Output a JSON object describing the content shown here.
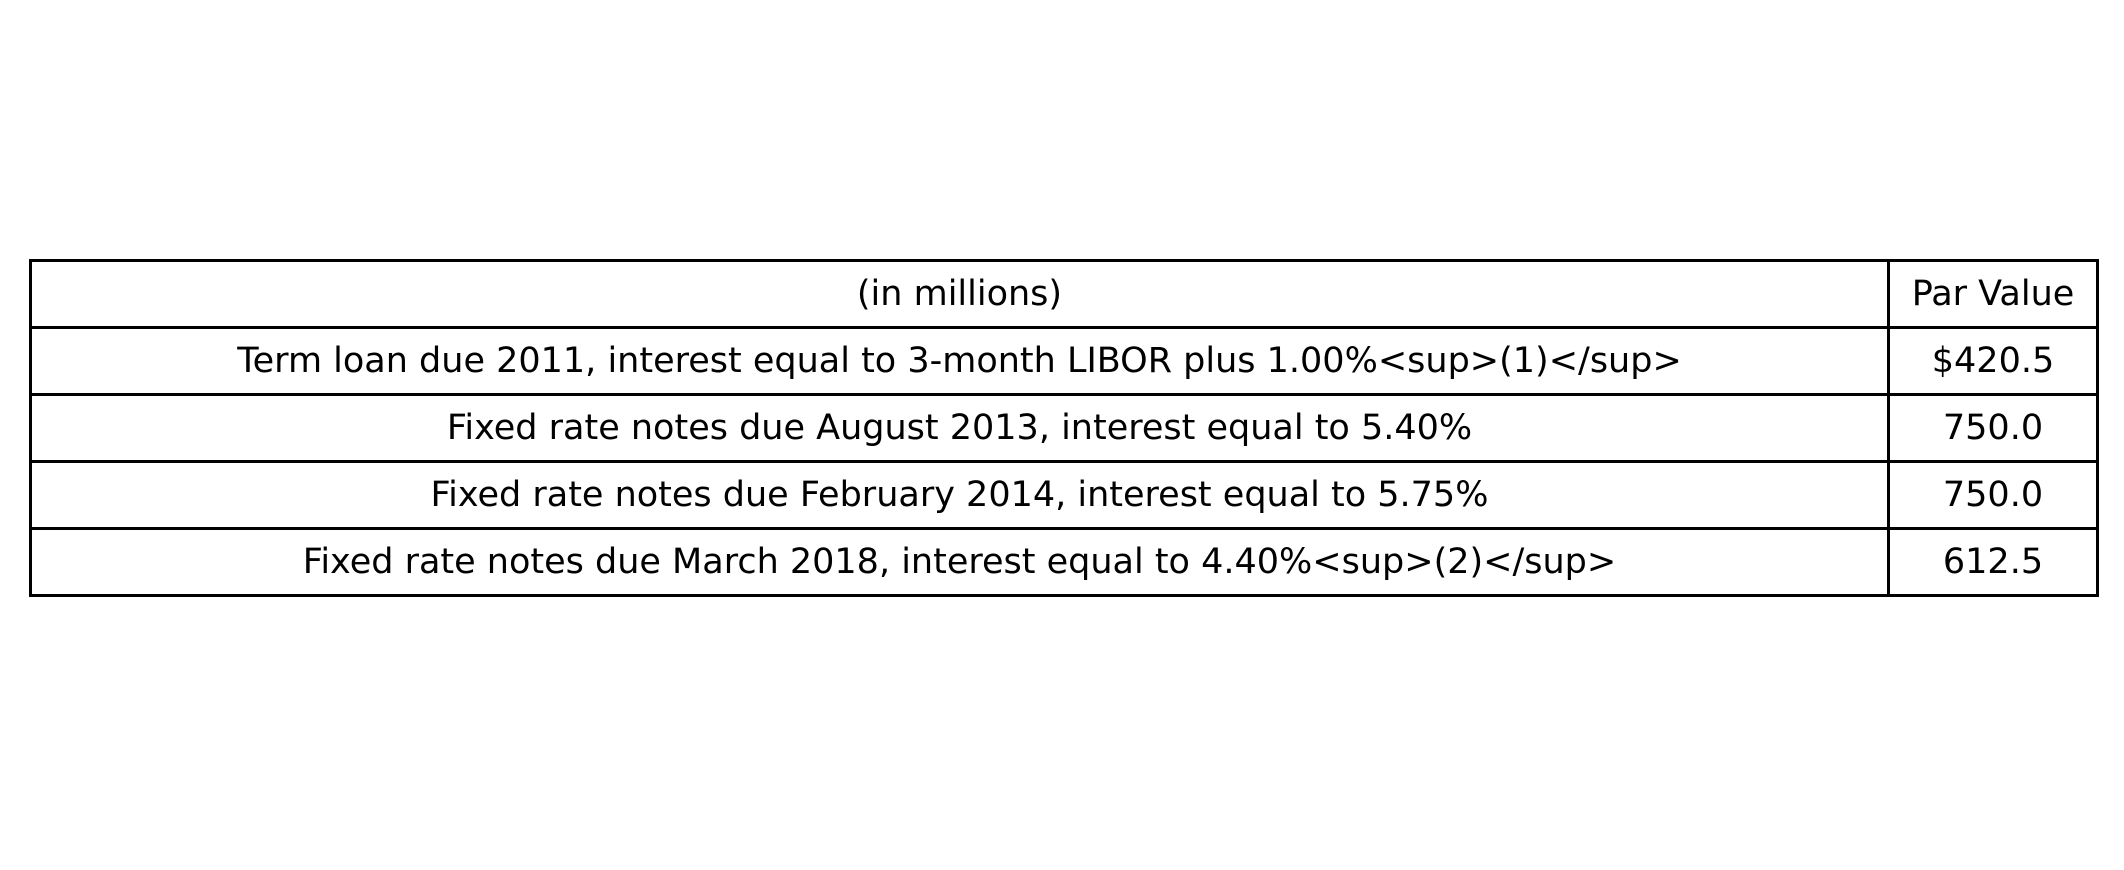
{
  "table": {
    "header": {
      "description": "(in millions)",
      "value": "Par Value"
    },
    "rows": [
      {
        "description": "Term loan due 2011, interest equal to 3-month LIBOR plus 1.00%<sup>(1)</sup>",
        "value": "$420.5"
      },
      {
        "description": "Fixed rate notes due August 2013, interest equal to 5.40%",
        "value": "750.0"
      },
      {
        "description": "Fixed rate notes due February 2014, interest equal to 5.75%",
        "value": "750.0"
      },
      {
        "description": "Fixed rate notes due March 2018, interest equal to 4.40%<sup>(2)</sup>",
        "value": "612.5"
      }
    ]
  }
}
